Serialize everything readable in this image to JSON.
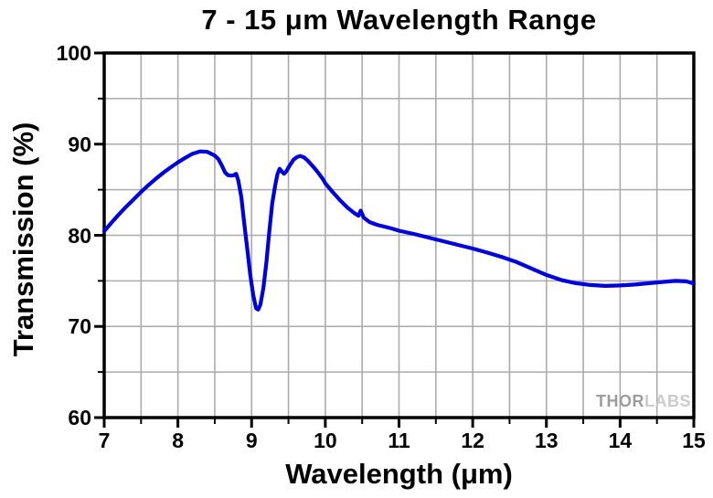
{
  "chart_data": {
    "type": "line",
    "title": "7 - 15 μm Wavelength Range",
    "xlabel": "Wavelength (μm)",
    "ylabel": "Transmission (%)",
    "xlim": [
      7,
      15
    ],
    "ylim": [
      60,
      100
    ],
    "x_major_ticks": [
      7,
      8,
      9,
      10,
      11,
      12,
      13,
      14,
      15
    ],
    "y_major_ticks": [
      100,
      90,
      80,
      70,
      60
    ],
    "x_minor_ticks": [
      7.5,
      8.5,
      9.5,
      10.5,
      11.5,
      12.5,
      13.5,
      14.5
    ],
    "y_minor_ticks": [
      95,
      85,
      75,
      65
    ],
    "grid": {
      "x_step": 0.5,
      "y_step": 5,
      "on": true
    },
    "legend": "none",
    "colors": {
      "curve": "#0000dd",
      "grid": "#ababab",
      "axis": "#000000"
    },
    "watermark": {
      "part1": "THOR",
      "part2": "LABS"
    },
    "series": [
      {
        "name": "Transmission",
        "points": [
          [
            7.0,
            80.45
          ],
          [
            7.1,
            81.4
          ],
          [
            7.2,
            82.3
          ],
          [
            7.3,
            83.15
          ],
          [
            7.4,
            83.95
          ],
          [
            7.5,
            84.75
          ],
          [
            7.6,
            85.5
          ],
          [
            7.7,
            86.2
          ],
          [
            7.8,
            86.85
          ],
          [
            7.9,
            87.45
          ],
          [
            8.0,
            88.0
          ],
          [
            8.1,
            88.5
          ],
          [
            8.2,
            88.95
          ],
          [
            8.3,
            89.2
          ],
          [
            8.4,
            89.15
          ],
          [
            8.5,
            88.75
          ],
          [
            8.55,
            88.35
          ],
          [
            8.6,
            87.6
          ],
          [
            8.64,
            86.9
          ],
          [
            8.68,
            86.6
          ],
          [
            8.72,
            86.55
          ],
          [
            8.76,
            86.6
          ],
          [
            8.79,
            86.75
          ],
          [
            8.82,
            86.0
          ],
          [
            8.86,
            84.2
          ],
          [
            8.9,
            81.3
          ],
          [
            8.94,
            78.6
          ],
          [
            8.98,
            75.8
          ],
          [
            9.02,
            73.5
          ],
          [
            9.06,
            72.0
          ],
          [
            9.09,
            71.85
          ],
          [
            9.12,
            72.4
          ],
          [
            9.16,
            74.2
          ],
          [
            9.2,
            77.0
          ],
          [
            9.24,
            80.4
          ],
          [
            9.28,
            83.5
          ],
          [
            9.32,
            85.5
          ],
          [
            9.35,
            86.7
          ],
          [
            9.38,
            87.3
          ],
          [
            9.41,
            87.0
          ],
          [
            9.44,
            86.75
          ],
          [
            9.47,
            87.0
          ],
          [
            9.52,
            87.7
          ],
          [
            9.57,
            88.3
          ],
          [
            9.62,
            88.6
          ],
          [
            9.66,
            88.7
          ],
          [
            9.71,
            88.55
          ],
          [
            9.76,
            88.2
          ],
          [
            9.81,
            87.75
          ],
          [
            9.86,
            87.3
          ],
          [
            9.91,
            86.8
          ],
          [
            9.96,
            86.25
          ],
          [
            10.0,
            85.7
          ],
          [
            10.1,
            84.75
          ],
          [
            10.2,
            83.85
          ],
          [
            10.3,
            83.05
          ],
          [
            10.4,
            82.4
          ],
          [
            10.45,
            82.15
          ],
          [
            10.48,
            82.7
          ],
          [
            10.52,
            81.95
          ],
          [
            10.6,
            81.45
          ],
          [
            10.7,
            81.15
          ],
          [
            10.8,
            80.95
          ],
          [
            10.9,
            80.75
          ],
          [
            11.0,
            80.5
          ],
          [
            11.2,
            80.15
          ],
          [
            11.4,
            79.75
          ],
          [
            11.6,
            79.35
          ],
          [
            11.8,
            78.95
          ],
          [
            12.0,
            78.55
          ],
          [
            12.2,
            78.1
          ],
          [
            12.4,
            77.6
          ],
          [
            12.6,
            77.05
          ],
          [
            12.8,
            76.35
          ],
          [
            13.0,
            75.65
          ],
          [
            13.2,
            75.1
          ],
          [
            13.4,
            74.75
          ],
          [
            13.6,
            74.55
          ],
          [
            13.8,
            74.45
          ],
          [
            14.0,
            74.5
          ],
          [
            14.2,
            74.6
          ],
          [
            14.4,
            74.75
          ],
          [
            14.6,
            74.9
          ],
          [
            14.75,
            75.0
          ],
          [
            14.9,
            74.95
          ],
          [
            15.0,
            74.7
          ]
        ]
      }
    ]
  }
}
